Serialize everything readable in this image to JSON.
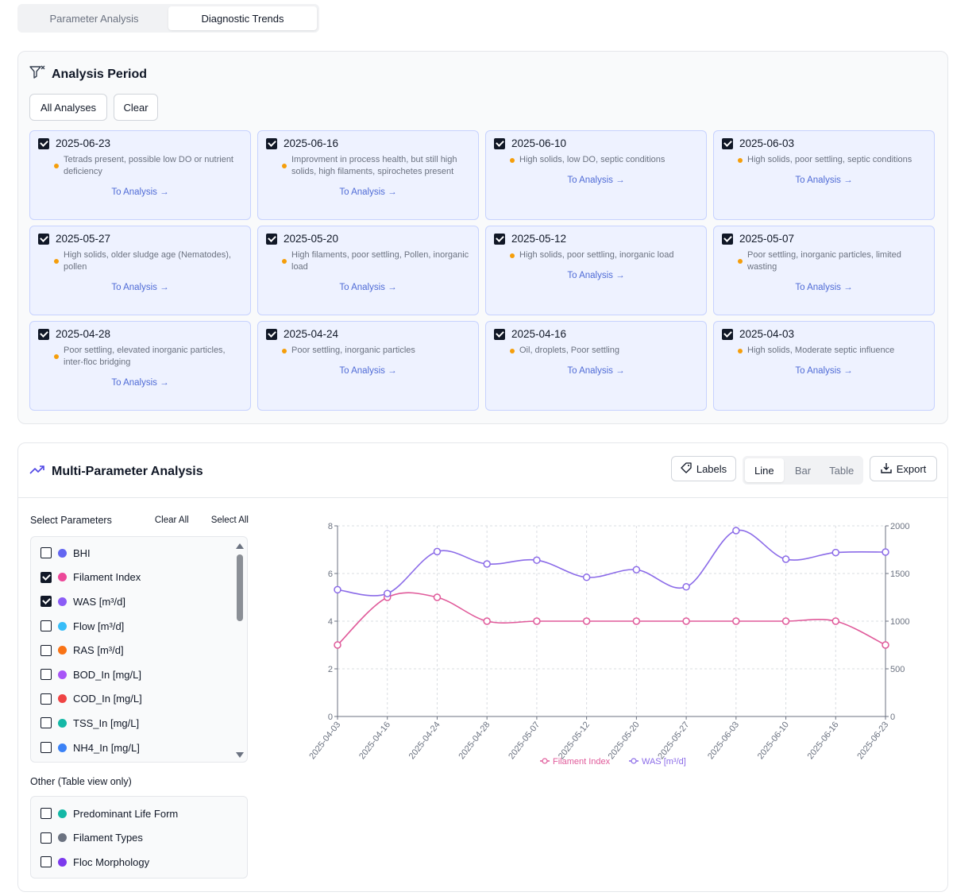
{
  "tabs": [
    {
      "label": "Parameter Analysis",
      "active": false
    },
    {
      "label": "Diagnostic Trends",
      "active": true
    }
  ],
  "analysis_period": {
    "title": "Analysis Period",
    "all_label": "All Analyses",
    "clear_label": "Clear",
    "link_label": "To Analysis →",
    "cards": [
      {
        "date": "2025-06-23",
        "note": "Tetrads present, possible low DO or nutrient deficiency",
        "checked": true
      },
      {
        "date": "2025-06-16",
        "note": "Improvment in process health, but still high solids, high filaments, spirochetes present",
        "checked": true
      },
      {
        "date": "2025-06-10",
        "note": "High solids, low DO, septic conditions",
        "checked": true
      },
      {
        "date": "2025-06-03",
        "note": "High solids, poor settling, septic conditions",
        "checked": true
      },
      {
        "date": "2025-05-27",
        "note": "High solids, older sludge age (Nematodes), pollen",
        "checked": true
      },
      {
        "date": "2025-05-20",
        "note": "High filaments, poor settling, Pollen, inorganic load",
        "checked": true
      },
      {
        "date": "2025-05-12",
        "note": "High solids, poor settling, inorganic load",
        "checked": true
      },
      {
        "date": "2025-05-07",
        "note": "Poor settling, inorganic particles, limited wasting",
        "checked": true
      },
      {
        "date": "2025-04-28",
        "note": "Poor settling, elevated inorganic particles, inter-floc bridging",
        "checked": true
      },
      {
        "date": "2025-04-24",
        "note": "Poor settling, inorganic particles",
        "checked": true
      },
      {
        "date": "2025-04-16",
        "note": "Oil, droplets, Poor settling",
        "checked": true
      },
      {
        "date": "2025-04-03",
        "note": "High solids, Moderate septic influence",
        "checked": true
      }
    ]
  },
  "multi": {
    "title": "Multi-Parameter Analysis",
    "labels_btn": "Labels",
    "views": [
      {
        "label": "Line",
        "active": true
      },
      {
        "label": "Bar",
        "active": false
      },
      {
        "label": "Table",
        "active": false
      }
    ],
    "export_btn": "Export",
    "select_title": "Select Parameters",
    "clear_all": "Clear All",
    "select_all": "Select All",
    "params": [
      {
        "label": "BHI",
        "color": "#6366f1",
        "checked": false
      },
      {
        "label": "Filament Index",
        "color": "#ec4899",
        "checked": true
      },
      {
        "label": "WAS [m³/d]",
        "color": "#8b5cf6",
        "checked": true
      },
      {
        "label": "Flow [m³/d]",
        "color": "#38bdf8",
        "checked": false
      },
      {
        "label": "RAS [m³/d]",
        "color": "#f97316",
        "checked": false
      },
      {
        "label": "BOD_In [mg/L]",
        "color": "#a855f7",
        "checked": false
      },
      {
        "label": "COD_In [mg/L]",
        "color": "#ef4444",
        "checked": false
      },
      {
        "label": "TSS_In [mg/L]",
        "color": "#14b8a6",
        "checked": false
      },
      {
        "label": "NH4_In [mg/L]",
        "color": "#3b82f6",
        "checked": false
      }
    ],
    "other_title": "Other (Table view only)",
    "other": [
      {
        "label": "Predominant Life Form",
        "color": "#14b8a6",
        "checked": false
      },
      {
        "label": "Filament Types",
        "color": "#6b7280",
        "checked": false
      },
      {
        "label": "Floc Morphology",
        "color": "#7c3aed",
        "checked": false
      }
    ]
  },
  "chart_data": {
    "type": "line",
    "x": [
      "2025-04-03",
      "2025-04-16",
      "2025-04-24",
      "2025-04-28",
      "2025-05-07",
      "2025-05-12",
      "2025-05-20",
      "2025-05-27",
      "2025-06-03",
      "2025-06-10",
      "2025-06-16",
      "2025-06-23"
    ],
    "series": [
      {
        "name": "Filament Index",
        "axis": "left",
        "color": "#e05a9a",
        "values": [
          3,
          5,
          5,
          4,
          4,
          4,
          4,
          4,
          4,
          4,
          4,
          3
        ]
      },
      {
        "name": "WAS [m³/d]",
        "axis": "right",
        "color": "#8b6be8",
        "values": [
          1330,
          1290,
          1730,
          1600,
          1640,
          1460,
          1540,
          1360,
          1950,
          1650,
          1720,
          1725
        ]
      }
    ],
    "ylim_left": [
      0,
      8
    ],
    "yticks_left": [
      0,
      2,
      4,
      6,
      8
    ],
    "ylim_right": [
      0,
      2000
    ],
    "yticks_right": [
      0,
      500,
      1000,
      1500,
      2000
    ],
    "grid": true,
    "legend": "bottom-center"
  }
}
